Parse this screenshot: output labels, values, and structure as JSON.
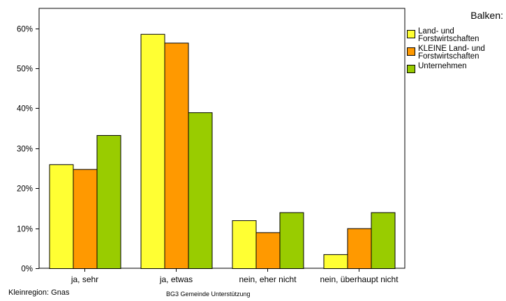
{
  "chart_data": {
    "type": "bar",
    "categories": [
      "ja, sehr",
      "ja, etwas",
      "nein, eher nicht",
      "nein, überhaupt nicht"
    ],
    "series": [
      {
        "name": "Land- und\nForstwirtschaften",
        "color": "#ffff33",
        "values": [
          26,
          58.6,
          12,
          3.5
        ]
      },
      {
        "name": "KLEINE Land- und\nForstwirtschaften",
        "color": "#ff9900",
        "values": [
          24.8,
          56.4,
          9,
          10
        ]
      },
      {
        "name": "Unternehmen",
        "color": "#99cc00",
        "values": [
          33.3,
          39,
          14,
          14
        ]
      }
    ],
    "ylim": [
      0,
      65
    ],
    "yticks": [
      0,
      10,
      20,
      30,
      40,
      50,
      60
    ],
    "ytick_labels": [
      "0%",
      "10%",
      "20%",
      "30%",
      "40%",
      "50%",
      "60%"
    ],
    "legend_title": "Balken:",
    "legend_position": "right",
    "grid": false
  },
  "footer": {
    "region": "Kleinregion: Gnas",
    "variable": "BG3  Gemeinde  Unterstützung"
  }
}
